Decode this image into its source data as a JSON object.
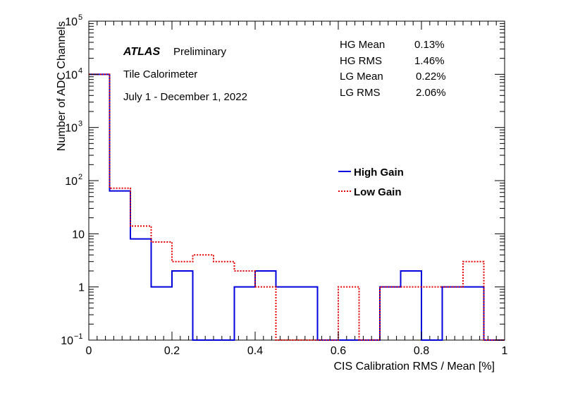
{
  "chart_data": {
    "type": "histogram",
    "xlabel": "CIS Calibration RMS / Mean [%]",
    "ylabel": "Number of ADC Channels",
    "xlim": [
      0,
      1
    ],
    "ylim": [
      0.1,
      100000
    ],
    "yscale": "log",
    "x_tick_labels": [
      "0",
      "0.2",
      "0.4",
      "0.6",
      "0.8",
      "1"
    ],
    "y_tick_labels": [
      {
        "value": 0.1,
        "base": "10",
        "exp": "−1"
      },
      {
        "value": 1,
        "base": "1",
        "exp": ""
      },
      {
        "value": 10,
        "base": "10",
        "exp": ""
      },
      {
        "value": 100,
        "base": "10",
        "exp": "2"
      },
      {
        "value": 1000,
        "base": "10",
        "exp": "3"
      },
      {
        "value": 10000,
        "base": "10",
        "exp": "4"
      },
      {
        "value": 100000,
        "base": "10",
        "exp": "5"
      }
    ],
    "bin_edges": [
      0,
      0.05,
      0.1,
      0.15,
      0.2,
      0.25,
      0.3,
      0.35,
      0.4,
      0.45,
      0.5,
      0.55,
      0.6,
      0.65,
      0.7,
      0.75,
      0.8,
      0.85,
      0.9,
      0.95,
      1.0
    ],
    "series": [
      {
        "name": "High Gain",
        "color": "#0000dd",
        "style": "solid",
        "values": [
          10000,
          64,
          8,
          1,
          2,
          0,
          0,
          1,
          2,
          1,
          1,
          0,
          0,
          0,
          1,
          2,
          0,
          1,
          1,
          0
        ]
      },
      {
        "name": "Low Gain",
        "color": "#e00000",
        "style": "dotted",
        "values": [
          10000,
          72,
          14,
          7,
          3,
          4,
          3,
          2,
          1,
          0,
          0,
          0,
          1,
          0,
          1,
          1,
          1,
          1,
          3,
          0
        ]
      }
    ],
    "legend_position": "right-center"
  },
  "annotations": {
    "atlas_label": "ATLAS",
    "preliminary": "Preliminary",
    "detector": "Tile Calorimeter",
    "period": "July 1 - December 1, 2022"
  },
  "stats": [
    {
      "label": "HG Mean",
      "value": "0.13%"
    },
    {
      "label": "HG RMS",
      "value": "1.46%"
    },
    {
      "label": "LG Mean",
      "value": "0.22%"
    },
    {
      "label": "LG RMS",
      "value": "2.06%"
    }
  ]
}
